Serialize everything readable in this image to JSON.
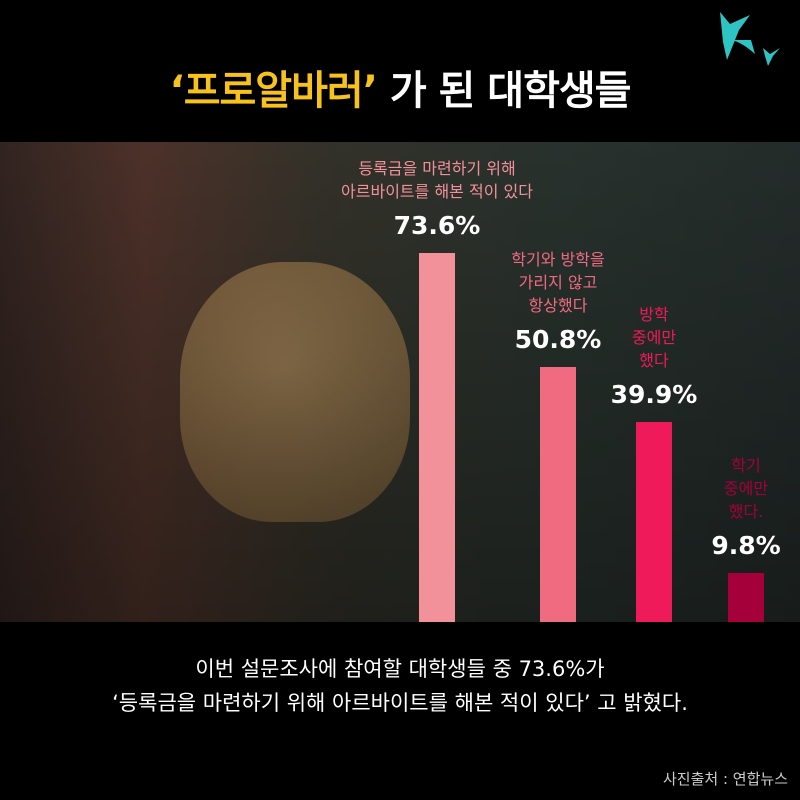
{
  "title": {
    "highlight": "‘프로알바러’",
    "rest": " 가 된 대학생들"
  },
  "logo": {
    "icon": "swallow-birds-logo",
    "color": "#2ec4c4"
  },
  "chart_data": {
    "type": "bar",
    "categories": [
      "등록금을 마련하기 위해\n아르바이트를 해본 적이 있다",
      "학기와 방학을\n가리지 않고\n항상했다",
      "방학\n중에만\n했다",
      "학기\n중에만\n했다."
    ],
    "values": [
      73.6,
      50.8,
      39.9,
      9.8
    ],
    "value_labels": [
      "73.6%",
      "50.8%",
      "39.9%",
      "9.8%"
    ],
    "colors": [
      "#f3919a",
      "#f06a80",
      "#ef1a5a",
      "#a5003a"
    ],
    "label_colors": [
      "#f3919a",
      "#f06a80",
      "#ef1a5a",
      "#a5003a"
    ],
    "ylim": [
      0,
      100
    ],
    "grid": false
  },
  "caption": {
    "line1": "이번 설문조사에 참여할 대학생들 중 73.6%가",
    "line2": "‘등록금을 마련하기 위해 아르바이트를 해본 적이 있다’ 고 밝혔다."
  },
  "source": "사진출처 : 연합뉴스"
}
